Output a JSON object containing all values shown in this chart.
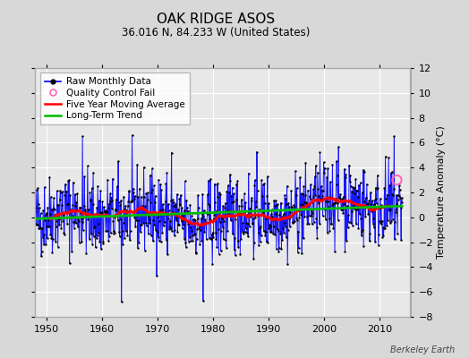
{
  "title": "OAK RIDGE ASOS",
  "subtitle": "36.016 N, 84.233 W (United States)",
  "ylabel": "Temperature Anomaly (°C)",
  "credit": "Berkeley Earth",
  "ylim": [
    -8,
    12
  ],
  "yticks": [
    -8,
    -6,
    -4,
    -2,
    0,
    2,
    4,
    6,
    8,
    10,
    12
  ],
  "xlim": [
    1948.0,
    2015.5
  ],
  "xticks": [
    1950,
    1960,
    1970,
    1980,
    1990,
    2000,
    2010
  ],
  "seed": 42,
  "n_months": 792,
  "start_year": 1948.0,
  "background_color": "#d8d8d8",
  "plot_bg_color": "#e8e8e8",
  "grid_color": "white",
  "line_color": "#0000ff",
  "dot_color": "#000000",
  "moving_avg_color": "#ff0000",
  "trend_color": "#00bb00",
  "qc_fail_color": "#ff69b4",
  "moving_avg_linewidth": 2.0,
  "trend_linewidth": 2.0,
  "data_linewidth": 0.7,
  "dot_size": 3.0,
  "title_fontsize": 11,
  "subtitle_fontsize": 8.5,
  "tick_fontsize": 8,
  "ylabel_fontsize": 8,
  "legend_fontsize": 7.5,
  "credit_fontsize": 7
}
